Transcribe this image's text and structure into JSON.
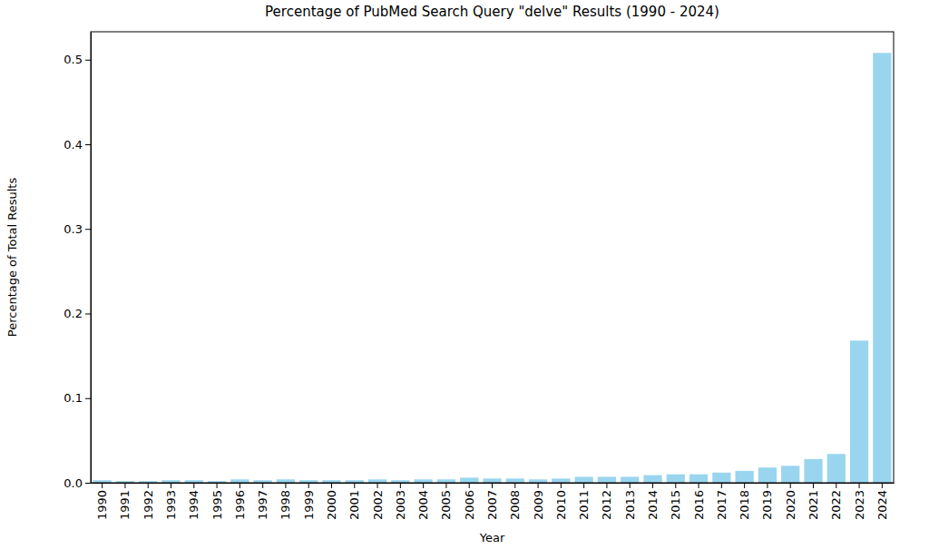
{
  "chart_data": {
    "type": "bar",
    "title": "Percentage of PubMed Search Query \"delve\" Results (1990 - 2024)",
    "x_label": "Year",
    "y_label": "Percentage of Total Results",
    "categories": [
      "1990",
      "1991",
      "1992",
      "1993",
      "1994",
      "1995",
      "1996",
      "1997",
      "1998",
      "1999",
      "2000",
      "2001",
      "2002",
      "2003",
      "2004",
      "2005",
      "2006",
      "2007",
      "2008",
      "2009",
      "2010",
      "2011",
      "2012",
      "2013",
      "2014",
      "2015",
      "2016",
      "2017",
      "2018",
      "2019",
      "2020",
      "2021",
      "2022",
      "2023",
      "2024"
    ],
    "values": [
      0.003,
      0.002,
      0.002,
      0.003,
      0.003,
      0.002,
      0.004,
      0.003,
      0.004,
      0.003,
      0.003,
      0.003,
      0.004,
      0.003,
      0.004,
      0.004,
      0.006,
      0.005,
      0.005,
      0.004,
      0.005,
      0.007,
      0.007,
      0.007,
      0.009,
      0.01,
      0.01,
      0.012,
      0.014,
      0.018,
      0.02,
      0.028,
      0.034,
      0.168,
      0.508
    ],
    "color": "#87ceeb",
    "ylim": [
      0,
      0.533
    ],
    "yticks": [
      {
        "value": 0,
        "label": "0.0"
      },
      0.1,
      0.2,
      0.3,
      0.4,
      0.5
    ],
    "grid": false
  }
}
